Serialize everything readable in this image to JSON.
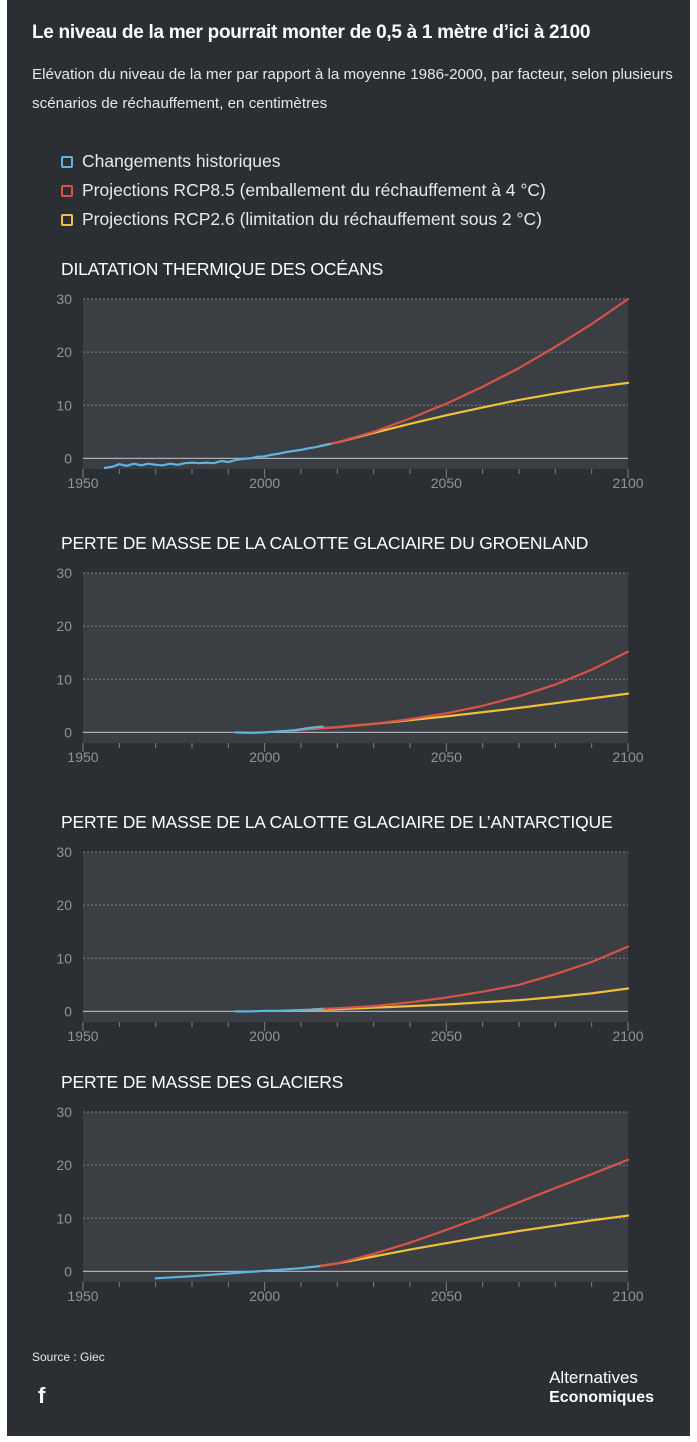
{
  "title": "Le niveau de la mer pourrait monter de 0,5 à 1 mètre d’ici à 2100",
  "subtitle": "Elévation du niveau de la mer par rapport à la moyenne 1986-2000, par facteur, selon plusieurs scénarios de réchauffement, en centimètres",
  "legend": [
    {
      "label": "Changements historiques",
      "color": "#5fb4df"
    },
    {
      "label": "Projections RCP8.5 (emballement du réchauffement à 4 °C)",
      "color": "#d9524a"
    },
    {
      "label": "Projections RCP2.6 (limitation du réchauffement sous 2 °C)",
      "color": "#f0c03a"
    }
  ],
  "colors": {
    "historical": "#5fb4df",
    "rcp85": "#d9524a",
    "rcp26": "#f0c03a",
    "plot_bg": "#3b3f44",
    "grid": "#7b8086",
    "zero": "#a9aeb3"
  },
  "chart_data": [
    {
      "type": "line",
      "title": "DILATATION THERMIQUE DES OCÉANS",
      "xlim": [
        1950,
        2100
      ],
      "ylim": [
        -2,
        30
      ],
      "xticks": [
        1950,
        2000,
        2050,
        2100
      ],
      "yticks": [
        0,
        10,
        20,
        30
      ],
      "series": [
        {
          "name": "Changements historiques",
          "key": "historical",
          "x": [
            1956,
            1958,
            1960,
            1962,
            1964,
            1966,
            1968,
            1970,
            1972,
            1974,
            1976,
            1978,
            1980,
            1982,
            1984,
            1986,
            1988,
            1990,
            1992,
            1994,
            1996,
            1998,
            2000,
            2002,
            2004,
            2006,
            2008,
            2010,
            2012,
            2014,
            2016,
            2018
          ],
          "y": [
            -1.8,
            -1.6,
            -1.1,
            -1.4,
            -1.0,
            -1.3,
            -1.0,
            -1.2,
            -1.3,
            -1.0,
            -1.2,
            -0.9,
            -0.8,
            -0.9,
            -0.8,
            -0.9,
            -0.5,
            -0.7,
            -0.3,
            -0.1,
            0.0,
            0.3,
            0.4,
            0.7,
            0.9,
            1.2,
            1.4,
            1.6,
            1.9,
            2.1,
            2.4,
            2.7
          ]
        },
        {
          "name": "Projections RCP8.5",
          "key": "rcp85",
          "x": [
            2015,
            2020,
            2030,
            2040,
            2050,
            2060,
            2070,
            2080,
            2090,
            2100
          ],
          "y": [
            2.3,
            3.0,
            5.0,
            7.5,
            10.3,
            13.5,
            17.0,
            21.0,
            25.3,
            30.0
          ]
        },
        {
          "name": "Projections RCP2.6",
          "key": "rcp26",
          "x": [
            2015,
            2020,
            2030,
            2040,
            2050,
            2060,
            2070,
            2080,
            2090,
            2100
          ],
          "y": [
            2.3,
            3.0,
            4.8,
            6.5,
            8.1,
            9.6,
            11.0,
            12.2,
            13.3,
            14.2
          ]
        }
      ]
    },
    {
      "type": "line",
      "title": "PERTE DE MASSE DE LA CALOTTE GLACIAIRE DU GROENLAND",
      "xlim": [
        1950,
        2100
      ],
      "ylim": [
        -2,
        30
      ],
      "xticks": [
        1950,
        2000,
        2050,
        2100
      ],
      "yticks": [
        0,
        10,
        20,
        30
      ],
      "series": [
        {
          "name": "Changements historiques",
          "key": "historical",
          "x": [
            1992,
            1996,
            2000,
            2004,
            2008,
            2012,
            2016
          ],
          "y": [
            0.0,
            -0.1,
            0.0,
            0.2,
            0.4,
            0.8,
            1.1
          ]
        },
        {
          "name": "Projections RCP8.5",
          "key": "rcp85",
          "x": [
            2008,
            2020,
            2030,
            2040,
            2050,
            2060,
            2070,
            2080,
            2090,
            2100
          ],
          "y": [
            0.4,
            1.0,
            1.6,
            2.5,
            3.6,
            5.0,
            6.8,
            9.0,
            11.8,
            15.2
          ]
        },
        {
          "name": "Projections RCP2.6",
          "key": "rcp26",
          "x": [
            2008,
            2020,
            2030,
            2040,
            2050,
            2060,
            2070,
            2080,
            2090,
            2100
          ],
          "y": [
            0.4,
            1.0,
            1.6,
            2.3,
            3.0,
            3.8,
            4.6,
            5.5,
            6.4,
            7.3
          ]
        }
      ]
    },
    {
      "type": "line",
      "title": "PERTE DE MASSE DE LA CALOTTE GLACIAIRE DE L’ANTARCTIQUE",
      "xlim": [
        1950,
        2100
      ],
      "ylim": [
        -2,
        30
      ],
      "xticks": [
        1950,
        2000,
        2050,
        2100
      ],
      "yticks": [
        0,
        10,
        20,
        30
      ],
      "series": [
        {
          "name": "Changements historiques",
          "key": "historical",
          "x": [
            1992,
            1996,
            2000,
            2004,
            2008,
            2012,
            2016
          ],
          "y": [
            0.0,
            0.0,
            0.1,
            0.1,
            0.2,
            0.3,
            0.5
          ]
        },
        {
          "name": "Projections RCP8.5",
          "key": "rcp85",
          "x": [
            2008,
            2020,
            2030,
            2040,
            2050,
            2060,
            2070,
            2080,
            2090,
            2100
          ],
          "y": [
            0.2,
            0.6,
            1.0,
            1.7,
            2.6,
            3.7,
            5.0,
            7.0,
            9.3,
            12.2
          ]
        },
        {
          "name": "Projections RCP2.6",
          "key": "rcp26",
          "x": [
            2008,
            2020,
            2030,
            2040,
            2050,
            2060,
            2070,
            2080,
            2090,
            2100
          ],
          "y": [
            0.2,
            0.4,
            0.7,
            1.0,
            1.3,
            1.7,
            2.1,
            2.7,
            3.4,
            4.3
          ]
        }
      ]
    },
    {
      "type": "line",
      "title": "PERTE DE MASSE DES GLACIERS",
      "xlim": [
        1950,
        2100
      ],
      "ylim": [
        -2,
        30
      ],
      "xticks": [
        1950,
        2000,
        2050,
        2100
      ],
      "yticks": [
        0,
        10,
        20,
        30
      ],
      "series": [
        {
          "name": "Changements historiques",
          "key": "historical",
          "x": [
            1970,
            1980,
            1990,
            2000,
            2010,
            2015
          ],
          "y": [
            -1.3,
            -0.9,
            -0.4,
            0.1,
            0.6,
            1.0
          ]
        },
        {
          "name": "Projections RCP8.5",
          "key": "rcp85",
          "x": [
            2015,
            2020,
            2030,
            2040,
            2050,
            2060,
            2070,
            2080,
            2090,
            2100
          ],
          "y": [
            1.0,
            1.5,
            3.3,
            5.4,
            7.8,
            10.3,
            13.0,
            15.7,
            18.3,
            21.0
          ]
        },
        {
          "name": "Projections RCP2.6",
          "key": "rcp26",
          "x": [
            2015,
            2020,
            2030,
            2040,
            2050,
            2060,
            2070,
            2080,
            2090,
            2100
          ],
          "y": [
            1.0,
            1.5,
            2.8,
            4.1,
            5.3,
            6.5,
            7.6,
            8.6,
            9.6,
            10.5
          ]
        }
      ]
    }
  ],
  "source": "Source : Giec",
  "social": {
    "facebook": "f"
  },
  "logo": {
    "line1": "Alternatives",
    "line2": "Economiques"
  }
}
